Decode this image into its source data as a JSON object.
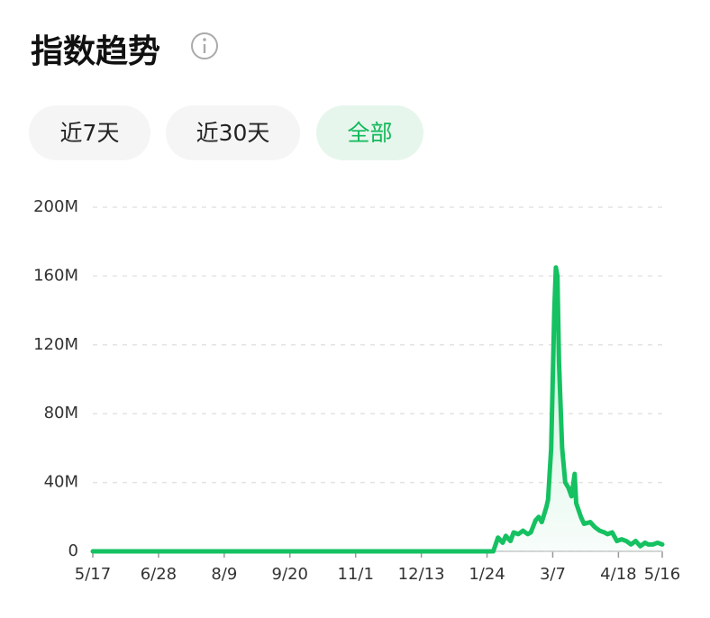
{
  "header": {
    "title": "指数趋势"
  },
  "tabs": [
    "近7天",
    "近30天",
    "全部"
  ],
  "chart_data": {
    "type": "line",
    "x": [
      0,
      256,
      259,
      262,
      264,
      267,
      269,
      272,
      275,
      278,
      280,
      283,
      285,
      287,
      290,
      291,
      293,
      295,
      296,
      297,
      298,
      300,
      302,
      304,
      306,
      308,
      309,
      312,
      314,
      318,
      321,
      324,
      327,
      329,
      332,
      335,
      338,
      341,
      344,
      347,
      350,
      353,
      355,
      358,
      361,
      364
    ],
    "series": [
      {
        "color": "#15c161",
        "values": [
          0,
          0,
          8,
          5,
          9,
          6,
          11,
          10,
          12,
          10,
          11,
          18,
          20,
          17,
          26,
          30,
          60,
          140,
          165,
          160,
          110,
          60,
          40,
          37,
          32,
          45,
          28,
          20,
          16,
          17,
          14,
          12,
          11,
          10,
          11,
          6,
          7,
          6,
          4,
          6,
          3,
          5,
          4,
          4,
          5,
          4
        ]
      }
    ],
    "xlim": [
      0,
      364
    ],
    "xticks": [
      {
        "value": 0,
        "label": "5/17"
      },
      {
        "value": 42,
        "label": "6/28"
      },
      {
        "value": 84,
        "label": "8/9"
      },
      {
        "value": 126,
        "label": "9/20"
      },
      {
        "value": 168,
        "label": "11/1"
      },
      {
        "value": 210,
        "label": "12/13"
      },
      {
        "value": 252,
        "label": "1/24"
      },
      {
        "value": 294,
        "label": "3/7"
      },
      {
        "value": 336,
        "label": "4/18"
      },
      {
        "value": 364,
        "label": "5/16"
      }
    ],
    "ylim": [
      0,
      200
    ],
    "yticks": [
      0,
      {
        "value": 40,
        "label": "40M"
      },
      {
        "value": 80,
        "label": "80M"
      },
      {
        "value": 120,
        "label": "120M"
      },
      {
        "value": 160,
        "label": "160M"
      },
      {
        "value": 200,
        "label": "200M"
      }
    ],
    "grid": true
  }
}
